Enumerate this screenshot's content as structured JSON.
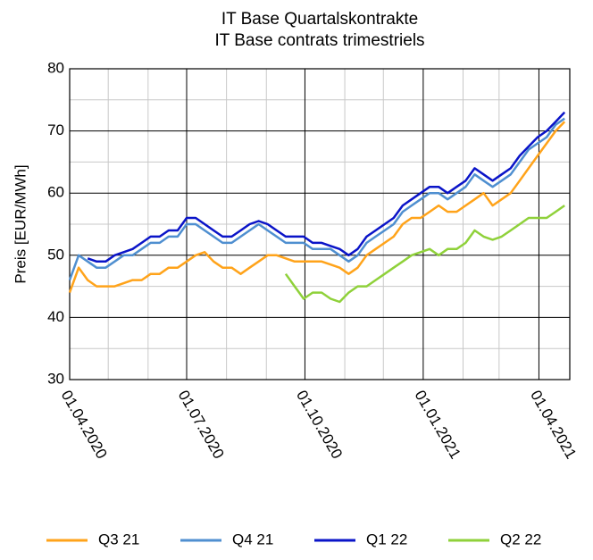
{
  "chart_data": {
    "type": "line",
    "title": "IT Base Quartalskontrakte",
    "subtitle": "IT Base contrats trimestriels",
    "y_label": "Preis [EUR/MWh]",
    "x": [
      "01.04.2020",
      "08.04.2020",
      "15.04.2020",
      "22.04.2020",
      "29.04.2020",
      "06.05.2020",
      "13.05.2020",
      "20.05.2020",
      "27.05.2020",
      "03.06.2020",
      "10.06.2020",
      "17.06.2020",
      "24.06.2020",
      "01.07.2020",
      "08.07.2020",
      "15.07.2020",
      "22.07.2020",
      "29.07.2020",
      "05.08.2020",
      "12.08.2020",
      "19.08.2020",
      "26.08.2020",
      "02.09.2020",
      "09.09.2020",
      "16.09.2020",
      "23.09.2020",
      "30.09.2020",
      "07.10.2020",
      "14.10.2020",
      "21.10.2020",
      "28.10.2020",
      "04.11.2020",
      "11.11.2020",
      "18.11.2020",
      "25.11.2020",
      "02.12.2020",
      "09.12.2020",
      "16.12.2020",
      "23.12.2020",
      "30.12.2020",
      "06.01.2021",
      "13.01.2021",
      "20.01.2021",
      "27.01.2021",
      "03.02.2021",
      "10.02.2021",
      "17.02.2021",
      "24.02.2021",
      "03.03.2021",
      "10.03.2021",
      "17.03.2021",
      "24.03.2021",
      "31.03.2021",
      "07.04.2021",
      "14.04.2021",
      "21.04.2021"
    ],
    "series": [
      {
        "name": "Q3 21",
        "color": "#ffa31a",
        "values": [
          44,
          48,
          46,
          45,
          45,
          45,
          45.5,
          46,
          46,
          47,
          47,
          48,
          48,
          49,
          50,
          50.5,
          49,
          48,
          48,
          47,
          48,
          49,
          50,
          50,
          49.5,
          49,
          49,
          49,
          49,
          48.5,
          48,
          47,
          48,
          50,
          51,
          52,
          53,
          55,
          56,
          56,
          57,
          58,
          57,
          57,
          58,
          59,
          60,
          58,
          59,
          60,
          62,
          64,
          66,
          68,
          70,
          71.5
        ]
      },
      {
        "name": "Q4 21",
        "color": "#4f8fd0",
        "values": [
          46,
          50,
          49,
          48,
          48,
          49,
          50,
          50,
          51,
          52,
          52,
          53,
          53,
          55,
          55,
          54,
          53,
          52,
          52,
          53,
          54,
          55,
          54,
          53,
          52,
          52,
          52,
          51,
          51,
          51,
          50,
          49,
          50,
          52,
          53,
          54,
          55,
          57,
          58,
          59,
          60,
          60,
          59,
          60,
          61,
          63,
          62,
          61,
          62,
          63,
          65,
          67,
          68,
          69,
          71,
          72
        ]
      },
      {
        "name": "Q1 22",
        "color": "#0a14c8",
        "values": [
          null,
          null,
          49.5,
          49,
          49,
          50,
          50.5,
          51,
          52,
          53,
          53,
          54,
          54,
          56,
          56,
          55,
          54,
          53,
          53,
          54,
          55,
          55.5,
          55,
          54,
          53,
          53,
          53,
          52,
          52,
          51.5,
          51,
          50,
          51,
          53,
          54,
          55,
          56,
          58,
          59,
          60,
          61,
          61,
          60,
          61,
          62,
          64,
          63,
          62,
          63,
          64,
          66,
          67.5,
          69,
          70,
          71.5,
          73
        ]
      },
      {
        "name": "Q2 22",
        "color": "#8fd13a",
        "values": [
          null,
          null,
          null,
          null,
          null,
          null,
          null,
          null,
          null,
          null,
          null,
          null,
          null,
          null,
          null,
          null,
          null,
          null,
          null,
          null,
          null,
          null,
          null,
          null,
          47,
          45,
          43,
          44,
          44,
          43,
          42.5,
          44,
          45,
          45,
          46,
          47,
          48,
          49,
          50,
          50.5,
          51,
          50,
          51,
          51,
          52,
          54,
          53,
          52.5,
          53,
          54,
          55,
          56,
          56,
          56,
          57,
          58
        ]
      }
    ],
    "xlim": [
      "01.04.2020",
      "25.04.2021"
    ],
    "xticks": [
      "01.04.2020",
      "01.07.2020",
      "01.10.2020",
      "01.01.2021",
      "01.04.2021"
    ],
    "x_minor_ticks": [
      "01.05.2020",
      "01.06.2020",
      "01.08.2020",
      "01.09.2020",
      "01.11.2020",
      "01.12.2020",
      "01.02.2021",
      "01.03.2021"
    ],
    "ylim": [
      30,
      80
    ],
    "yticks": [
      30,
      40,
      50,
      60,
      70,
      80
    ],
    "y_minor_ticks": [
      35,
      45,
      55,
      65,
      75
    ],
    "grid": true,
    "legend": "bottom"
  }
}
